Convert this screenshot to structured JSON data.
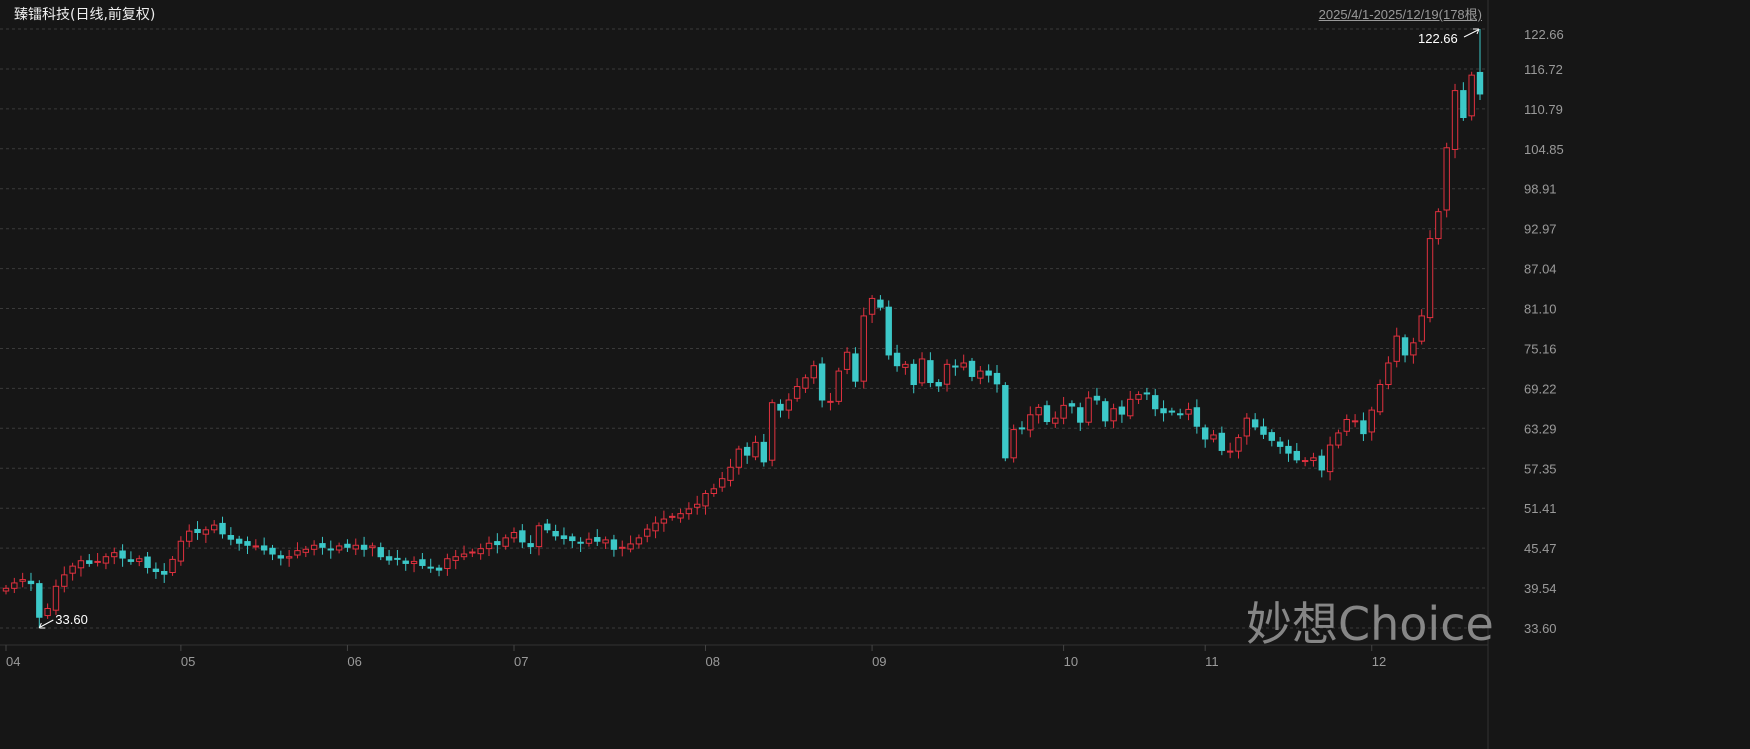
{
  "header": {
    "title": "臻镭科技(日线,前复权)",
    "range": "2025/4/1-2025/12/19(178根)"
  },
  "watermark": "妙想Choice",
  "colors": {
    "background": "#161616",
    "up": "#e0313f",
    "down": "#3cc8c8",
    "grid": "#3a3a3a",
    "text": "#9a9a9a"
  },
  "chart_data": {
    "type": "candlestick",
    "title": "臻镭科技(日线,前复权)",
    "ylim": [
      33.6,
      122.66
    ],
    "y_ticks": [
      "122.66",
      "116.72",
      "110.79",
      "104.85",
      "98.91",
      "92.97",
      "87.04",
      "81.10",
      "75.16",
      "69.22",
      "63.29",
      "57.35",
      "51.41",
      "45.47",
      "39.54",
      "33.60"
    ],
    "grid": true,
    "x_ticks": [
      {
        "label": "04",
        "index": 0
      },
      {
        "label": "05",
        "index": 21
      },
      {
        "label": "06",
        "index": 41
      },
      {
        "label": "07",
        "index": 61
      },
      {
        "label": "08",
        "index": 84
      },
      {
        "label": "09",
        "index": 104
      },
      {
        "label": "10",
        "index": 127
      },
      {
        "label": "11",
        "index": 144
      },
      {
        "label": "12",
        "index": 164
      }
    ],
    "annotations": {
      "max": {
        "label": "122.66",
        "value": 122.66,
        "index": 177
      },
      "min": {
        "label": "33.60",
        "value": 33.6,
        "index": 4
      }
    },
    "close": [
      39.5,
      40.3,
      40.8,
      40.2,
      35.2,
      36.5,
      39.8,
      41.5,
      42.8,
      43.6,
      43.2,
      43.5,
      44.2,
      44.8,
      44.0,
      43.5,
      43.9,
      42.6,
      42.0,
      41.6,
      43.8,
      46.5,
      48.0,
      47.8,
      48.2,
      48.9,
      47.6,
      46.8,
      46.2,
      45.9,
      45.8,
      45.2,
      44.6,
      44.0,
      44.2,
      45.1,
      45.3,
      45.9,
      45.6,
      45.2,
      45.8,
      45.6,
      45.9,
      45.3,
      45.8,
      44.2,
      43.7,
      43.8,
      43.2,
      43.5,
      42.9,
      42.5,
      42.2,
      43.9,
      44.2,
      44.6,
      44.9,
      45.4,
      46.2,
      46.0,
      47.0,
      47.8,
      46.4,
      45.7,
      48.8,
      48.2,
      47.3,
      46.9,
      46.6,
      46.2,
      46.8,
      46.5,
      46.7,
      45.3,
      45.6,
      46.1,
      47.0,
      48.3,
      49.2,
      49.8,
      50.2,
      50.6,
      51.3,
      52.0,
      53.6,
      54.3,
      55.8,
      57.5,
      60.2,
      59.3,
      61.2,
      58.3,
      67.1,
      66.0,
      67.5,
      69.5,
      70.8,
      72.6,
      67.5,
      67.3,
      71.8,
      74.6,
      70.3,
      80.0,
      82.6,
      81.3,
      74.2,
      72.6,
      72.8,
      69.8,
      73.6,
      70.1,
      69.6,
      72.8,
      72.4,
      73.0,
      71.0,
      71.8,
      71.2,
      69.9,
      58.9,
      63.1,
      63.3,
      65.3,
      66.4,
      64.3,
      64.8,
      66.7,
      66.6,
      64.2,
      67.8,
      67.5,
      64.4,
      66.2,
      65.4,
      67.6,
      68.3,
      68.4,
      66.2,
      65.6,
      65.7,
      65.4,
      66.1,
      63.6,
      61.7,
      62.3,
      60.0,
      59.9,
      61.9,
      64.8,
      63.5,
      62.4,
      61.5,
      60.6,
      59.6,
      58.6,
      58.5,
      58.9,
      57.1,
      60.8,
      62.6,
      64.6,
      64.4,
      62.5,
      66.0,
      69.8,
      73.0,
      77.0,
      74.2,
      76.0,
      80.0,
      91.5,
      95.5,
      105.0,
      113.5,
      109.5,
      115.8,
      113.0
    ]
  }
}
